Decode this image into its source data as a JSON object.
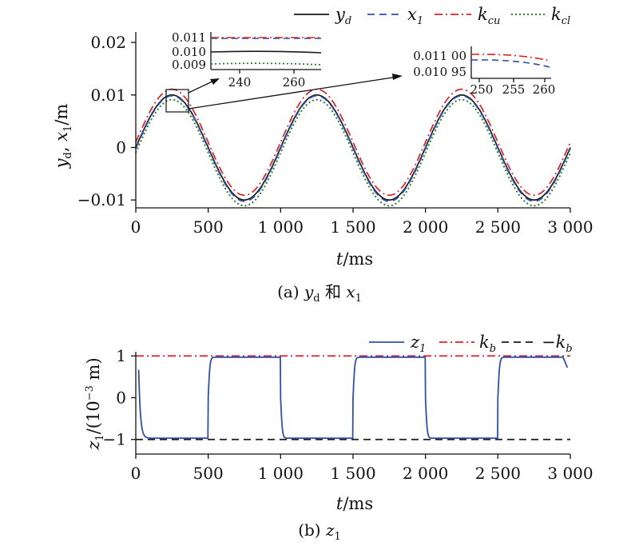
{
  "chart_data": [
    {
      "type": "line",
      "panel_caption": {
        "prefix": "(a)",
        "label_a": "y",
        "sub_a": "d",
        "conj": "和",
        "label_b": "x",
        "sub_b": "1"
      },
      "xlabel": {
        "var": "t",
        "unit": "/ms"
      },
      "ylabel": {
        "var1": "y",
        "sub1": "d",
        "sep": ", ",
        "var2": "x",
        "sub2": "1",
        "unit": "/m"
      },
      "xlim": [
        0,
        3000
      ],
      "ylim": [
        -0.0115,
        0.022
      ],
      "xticks": [
        0,
        500,
        1000,
        1500,
        2000,
        2500,
        3000
      ],
      "xtick_labels": [
        "0",
        "500",
        "1 000",
        "1 500",
        "2 000",
        "2 500",
        "3 000"
      ],
      "yticks": [
        -0.01,
        0,
        0.01,
        0.02
      ],
      "ytick_labels": [
        "−0.01",
        "0",
        "0.01",
        "0.02"
      ],
      "series": [
        {
          "name": "y",
          "sub": "d",
          "color": "#1a1a1a",
          "style": "solid",
          "amplitude": 0.01,
          "offset": 0,
          "period": 1000
        },
        {
          "name": "x",
          "sub": "1",
          "color": "#2f4fa8",
          "style": "dashed",
          "amplitude": 0.01005,
          "offset": -0.0002,
          "period": 1000
        },
        {
          "name": "k",
          "sub": "cu",
          "color": "#d6242a",
          "style": "dashdot",
          "amplitude": 0.0101,
          "offset": 0.001,
          "period": 1000
        },
        {
          "name": "k",
          "sub": "cl",
          "color": "#2e7d32",
          "style": "dotted",
          "amplitude": 0.0101,
          "offset": -0.001,
          "period": 1000
        }
      ],
      "inset1": {
        "xticks": [
          "240",
          "260"
        ],
        "yticks": [
          "0.011",
          "0.010",
          "0.009"
        ]
      },
      "inset2": {
        "xticks": [
          "250",
          "255",
          "260"
        ],
        "yticks": [
          "0.011 00",
          "0.010 95"
        ]
      }
    },
    {
      "type": "line",
      "panel_caption": {
        "prefix": "(b)",
        "label": "z",
        "sub": "1"
      },
      "xlabel": {
        "var": "t",
        "unit": "/ms"
      },
      "ylabel": {
        "var": "z",
        "sub": "1",
        "unit_pre": "/(10",
        "exp": "−3",
        "unit_post": " m)"
      },
      "xlim": [
        0,
        3000
      ],
      "ylim": [
        -1.35,
        1.1
      ],
      "xticks": [
        0,
        500,
        1000,
        1500,
        2000,
        2500,
        3000
      ],
      "xtick_labels": [
        "0",
        "500",
        "1 000",
        "1 500",
        "2 000",
        "2 500",
        "3 000"
      ],
      "yticks": [
        -1,
        0,
        1
      ],
      "ytick_labels": [
        "−1",
        "0",
        "1"
      ],
      "series": [
        {
          "name": "z",
          "sub": "1",
          "color": "#2f4fa8",
          "style": "solid",
          "start_value": 0.67,
          "level": 0.97,
          "switch_times": [
            500,
            1000,
            1500,
            2000,
            2500
          ],
          "end_value": 0.72
        },
        {
          "name": "k",
          "sub": "b",
          "color": "#d6242a",
          "style": "dashdot",
          "value": 1
        },
        {
          "name": "−k",
          "sub": "b",
          "color": "#1a1a1a",
          "style": "dashed",
          "value": -1
        }
      ]
    }
  ]
}
